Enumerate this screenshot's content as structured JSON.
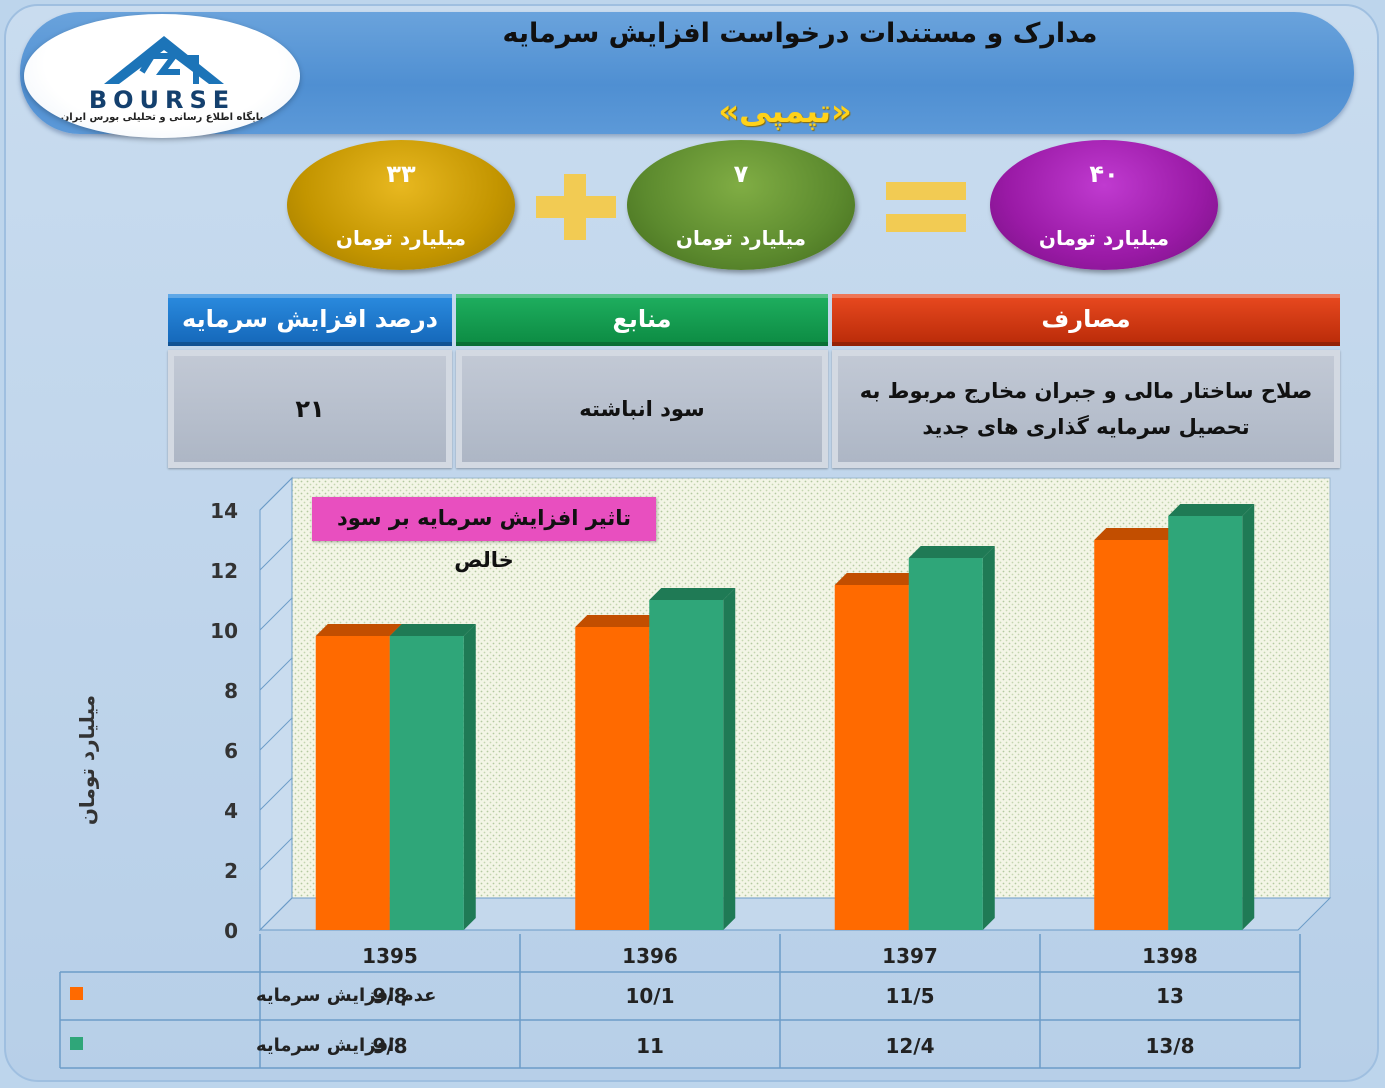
{
  "header": {
    "title": "مدارک و مستندات درخواست افزایش سرمایه",
    "subtitle": "«تپمپی»",
    "logo_text": "BOURSE",
    "logo_caption": "پایگاه اطلاع رسانی و تحلیلی بورس ایران"
  },
  "equation": {
    "item1": {
      "value": "۳۳",
      "unit": "میلیارد تومان",
      "color": "#c89b00"
    },
    "item2": {
      "value": "۷",
      "unit": "میلیارد تومان",
      "color": "#5c8a2e"
    },
    "total": {
      "value": "۴۰",
      "unit": "میلیارد تومان",
      "color": "#9a1aa6"
    }
  },
  "info_table": {
    "headers": {
      "uses": "مصارف",
      "sources": "منابع",
      "percent": "درصد افزایش سرمایه"
    },
    "values": {
      "uses": "صلاح ساختار مالی و جبران مخارج مربوط به تحصیل سرمایه گذاری های جدید",
      "sources": "سود انباشته",
      "percent": "۲۱"
    }
  },
  "chart_data": {
    "type": "bar",
    "title": "تاثیر افزایش سرمایه بر سود خالص",
    "ylabel": "میلیارد تومان",
    "ylim": [
      0,
      14
    ],
    "yticks": [
      0,
      2,
      4,
      6,
      8,
      10,
      12,
      14
    ],
    "categories": [
      "1395",
      "1396",
      "1397",
      "1398"
    ],
    "series": [
      {
        "name": "عدم افزایش سرمایه",
        "values": [
          9.8,
          10.1,
          11.5,
          13
        ],
        "labels": [
          "9/8",
          "10/1",
          "11/5",
          "13"
        ],
        "color": "#ff6a00"
      },
      {
        "name": "افزایش سرمایه",
        "values": [
          9.8,
          11,
          12.4,
          13.8
        ],
        "labels": [
          "9/8",
          "11",
          "12/4",
          "13/8"
        ],
        "color": "#2fa679"
      }
    ]
  }
}
